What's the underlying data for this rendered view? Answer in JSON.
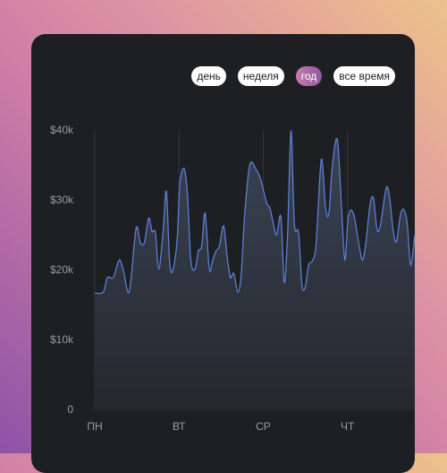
{
  "filters": {
    "options": [
      "день",
      "неделя",
      "год",
      "все время"
    ],
    "active": 2
  },
  "chart_data": {
    "type": "line",
    "x": [
      0,
      0.1,
      0.15,
      0.22,
      0.29,
      0.34,
      0.41,
      0.49,
      0.54,
      0.59,
      0.64,
      0.68,
      0.72,
      0.76,
      0.81,
      0.85,
      0.89,
      0.93,
      0.98,
      1.01,
      1.06,
      1.1,
      1.14,
      1.19,
      1.23,
      1.27,
      1.31,
      1.36,
      1.4,
      1.44,
      1.48,
      1.53,
      1.57,
      1.61,
      1.65,
      1.7,
      1.74,
      1.78,
      1.84,
      1.91,
      1.97,
      2.04,
      2.08,
      2.12,
      2.16,
      2.21,
      2.25,
      2.29,
      2.33,
      2.37,
      2.42,
      2.46,
      2.5,
      2.54,
      2.59,
      2.63,
      2.69,
      2.74,
      2.78,
      2.82,
      2.88,
      2.93,
      2.97,
      3.01,
      3.07,
      3.14,
      3.18,
      3.22,
      3.27,
      3.31,
      3.35,
      3.39,
      3.46,
      3.5,
      3.54,
      3.58,
      3.63,
      3.67,
      3.71,
      3.75,
      3.8
    ],
    "values": [
      16800,
      16900,
      19000,
      19000,
      21500,
      20000,
      17000,
      26000,
      24000,
      24000,
      27500,
      25600,
      25400,
      20200,
      25400,
      31300,
      21000,
      20200,
      24700,
      32400,
      34600,
      31000,
      21500,
      20200,
      22800,
      23500,
      28200,
      20200,
      21500,
      22800,
      23500,
      26400,
      22200,
      19000,
      19600,
      16900,
      19600,
      28000,
      35100,
      34600,
      33000,
      29700,
      28900,
      26700,
      25100,
      27700,
      18300,
      25400,
      40000,
      26700,
      25400,
      17900,
      17700,
      20800,
      21500,
      24100,
      35900,
      29000,
      28200,
      34900,
      38700,
      29000,
      21500,
      27700,
      28200,
      23500,
      21500,
      24100,
      29500,
      30300,
      26000,
      26400,
      31800,
      30500,
      26000,
      24100,
      28000,
      28700,
      26700,
      20800,
      25100
    ],
    "color": "#5b7fd4",
    "xlim": [
      0,
      3.8
    ],
    "xticks": [
      {
        "value": 0,
        "label": "ПН"
      },
      {
        "value": 1,
        "label": "ВТ"
      },
      {
        "value": 2,
        "label": "СР"
      },
      {
        "value": 3,
        "label": "ЧТ"
      }
    ],
    "ylim": [
      0,
      40000
    ],
    "yticks": [
      0,
      {
        "value": 10000,
        "label": "$10k"
      },
      {
        "value": 20000,
        "label": "$20k"
      },
      {
        "value": 30000,
        "label": "$30k"
      },
      {
        "value": 40000,
        "label": "$40k"
      }
    ],
    "grid": "x"
  }
}
